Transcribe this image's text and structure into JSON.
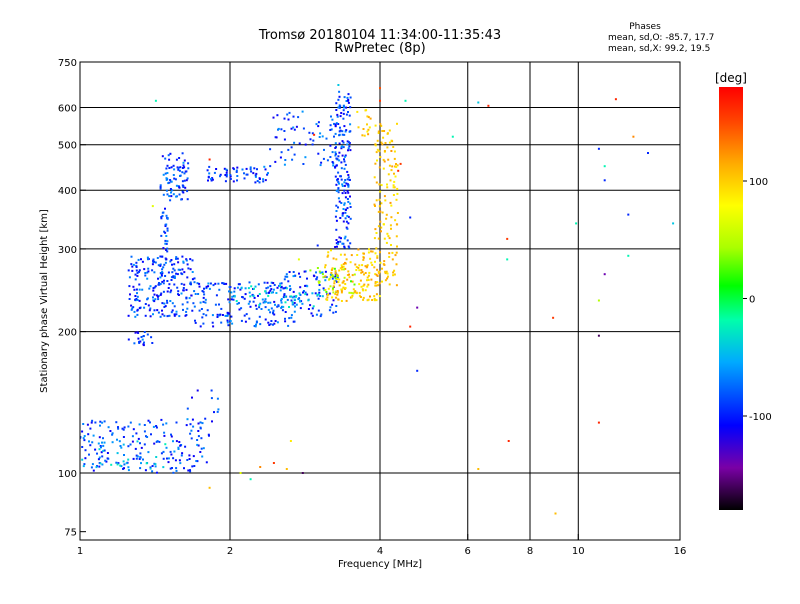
{
  "chart_data": {
    "type": "scatter",
    "title": "Tromsø 20180104 11:34:00-11:35:43",
    "subtitle": "RwPretec (8p)",
    "xlabel": "Frequency [MHz]",
    "ylabel": "Stationary phase Virtual Height [km]",
    "xscale": "log",
    "yscale": "log",
    "xlim": [
      1,
      16
    ],
    "ylim": [
      72,
      750
    ],
    "x_ticks": [
      {
        "value": 1,
        "label": "1"
      },
      {
        "value": 2,
        "label": "2"
      },
      {
        "value": 4,
        "label": "4"
      },
      {
        "value": 6,
        "label": "6"
      },
      {
        "value": 8,
        "label": "8"
      },
      {
        "value": 10,
        "label": "10"
      },
      {
        "value": 16,
        "label": "16"
      }
    ],
    "x_grid": [
      2,
      4,
      6,
      8,
      10
    ],
    "y_ticks": [
      {
        "value": 75,
        "label": "75"
      },
      {
        "value": 100,
        "label": "100"
      },
      {
        "value": 200,
        "label": "200"
      },
      {
        "value": 300,
        "label": "300"
      },
      {
        "value": 400,
        "label": "400"
      },
      {
        "value": 500,
        "label": "500"
      },
      {
        "value": 600,
        "label": "600"
      },
      {
        "value": 750,
        "label": "750"
      }
    ],
    "y_grid": [
      100,
      200,
      300,
      400,
      500,
      600
    ],
    "grid": true,
    "stats": {
      "heading": "Phases",
      "line1": "mean, sd,O: -85.7, 17.7",
      "line2": "mean, sd,X:  99.2, 19.5"
    },
    "colorbar": {
      "label": "[deg]",
      "range": [
        -180,
        180
      ],
      "ticks": [
        {
          "value": 100,
          "label": "100"
        },
        {
          "value": 0,
          "label": "0"
        },
        {
          "value": -100,
          "label": "-100"
        }
      ],
      "colors": [
        "#000000",
        "#7a00a6",
        "#0000ff",
        "#00aaff",
        "#00ffaa",
        "#00ff00",
        "#aaff00",
        "#ffff00",
        "#ffaa00",
        "#ff4400",
        "#ff0000"
      ]
    },
    "series": [
      {
        "phase_deg": -95,
        "clusters": [
          {
            "x": [
              1.45,
              1.65
            ],
            "y": [
              380,
              480
            ],
            "n": 80
          },
          {
            "x": [
              1.45,
              1.5
            ],
            "y": [
              250,
              380
            ],
            "n": 40
          },
          {
            "x": [
              1.8,
              2.4
            ],
            "y": [
              415,
              450
            ],
            "n": 60
          },
          {
            "x": [
              2.4,
              3.3
            ],
            "y": [
              450,
              590
            ],
            "n": 70
          },
          {
            "x": [
              3.25,
              3.5
            ],
            "y": [
              300,
              650
            ],
            "n": 180
          },
          {
            "x": [
              1.25,
              1.7
            ],
            "y": [
              215,
              290
            ],
            "n": 220
          },
          {
            "x": [
              1.7,
              2.7
            ],
            "y": [
              205,
              255
            ],
            "n": 190
          },
          {
            "x": [
              2.5,
              3.3
            ],
            "y": [
              215,
              270
            ],
            "n": 90
          },
          {
            "x": [
              1.25,
              1.4
            ],
            "y": [
              187,
              200
            ],
            "n": 20
          },
          {
            "x": [
              1.0,
              1.8
            ],
            "y": [
              100,
              130
            ],
            "n": 190
          },
          {
            "x": [
              1.6,
              1.9
            ],
            "y": [
              120,
              150
            ],
            "n": 20
          }
        ]
      },
      {
        "phase_deg": -60,
        "clusters": [
          {
            "x": [
              2.0,
              3.1
            ],
            "y": [
              225,
              250
            ],
            "n": 50
          },
          {
            "x": [
              1.0,
              1.5
            ],
            "y": [
              102,
              118
            ],
            "n": 25
          }
        ]
      },
      {
        "phase_deg": 95,
        "clusters": [
          {
            "x": [
              3.1,
              4.0
            ],
            "y": [
              232,
              300
            ],
            "n": 160
          },
          {
            "x": [
              3.9,
              4.35
            ],
            "y": [
              250,
              560
            ],
            "n": 140
          },
          {
            "x": [
              3.6,
              3.85
            ],
            "y": [
              520,
              600
            ],
            "n": 15
          }
        ]
      },
      {
        "phase_deg": 30,
        "clusters": [
          {
            "x": [
              3.0,
              3.6
            ],
            "y": [
              240,
              275
            ],
            "n": 25
          }
        ]
      }
    ],
    "scattered_points": [
      {
        "x": 1.42,
        "y": 620,
        "phase": -40
      },
      {
        "x": 1.82,
        "y": 465,
        "phase": 160
      },
      {
        "x": 2.95,
        "y": 525,
        "phase": 160
      },
      {
        "x": 3.3,
        "y": 670,
        "phase": -60
      },
      {
        "x": 4.0,
        "y": 660,
        "phase": 140
      },
      {
        "x": 4.0,
        "y": 620,
        "phase": 150
      },
      {
        "x": 4.5,
        "y": 620,
        "phase": -40
      },
      {
        "x": 4.4,
        "y": 455,
        "phase": 150
      },
      {
        "x": 4.35,
        "y": 440,
        "phase": 160
      },
      {
        "x": 4.6,
        "y": 350,
        "phase": -100
      },
      {
        "x": 5.6,
        "y": 520,
        "phase": -40
      },
      {
        "x": 6.3,
        "y": 615,
        "phase": -60
      },
      {
        "x": 6.6,
        "y": 605,
        "phase": 160
      },
      {
        "x": 7.2,
        "y": 315,
        "phase": 150
      },
      {
        "x": 7.2,
        "y": 285,
        "phase": -40
      },
      {
        "x": 4.75,
        "y": 225,
        "phase": -140
      },
      {
        "x": 4.6,
        "y": 205,
        "phase": 160
      },
      {
        "x": 4.75,
        "y": 165,
        "phase": -100
      },
      {
        "x": 7.25,
        "y": 117,
        "phase": 160
      },
      {
        "x": 6.3,
        "y": 102,
        "phase": 100
      },
      {
        "x": 8.9,
        "y": 214,
        "phase": 150
      },
      {
        "x": 9.0,
        "y": 82,
        "phase": 100
      },
      {
        "x": 9.9,
        "y": 340,
        "phase": -40
      },
      {
        "x": 11.0,
        "y": 490,
        "phase": -100
      },
      {
        "x": 11.3,
        "y": 450,
        "phase": -40
      },
      {
        "x": 11.3,
        "y": 420,
        "phase": -100
      },
      {
        "x": 11.3,
        "y": 265,
        "phase": -140
      },
      {
        "x": 11.0,
        "y": 233,
        "phase": 40
      },
      {
        "x": 11.0,
        "y": 196,
        "phase": -160
      },
      {
        "x": 11.0,
        "y": 128,
        "phase": 160
      },
      {
        "x": 11.9,
        "y": 625,
        "phase": 160
      },
      {
        "x": 12.9,
        "y": 520,
        "phase": 120
      },
      {
        "x": 12.6,
        "y": 355,
        "phase": -100
      },
      {
        "x": 12.6,
        "y": 290,
        "phase": -40
      },
      {
        "x": 13.8,
        "y": 480,
        "phase": -100
      },
      {
        "x": 15.5,
        "y": 340,
        "phase": -60
      },
      {
        "x": 2.3,
        "y": 103,
        "phase": 120
      },
      {
        "x": 2.45,
        "y": 105,
        "phase": 150
      },
      {
        "x": 2.6,
        "y": 102,
        "phase": 100
      },
      {
        "x": 2.8,
        "y": 100,
        "phase": -160
      },
      {
        "x": 2.2,
        "y": 97,
        "phase": -40
      },
      {
        "x": 2.1,
        "y": 100,
        "phase": 60
      },
      {
        "x": 1.82,
        "y": 93,
        "phase": 100
      },
      {
        "x": 2.65,
        "y": 117,
        "phase": 80
      },
      {
        "x": 1.4,
        "y": 370,
        "phase": 60
      },
      {
        "x": 2.9,
        "y": 270,
        "phase": 30
      },
      {
        "x": 2.75,
        "y": 285,
        "phase": 60
      },
      {
        "x": 3.0,
        "y": 305,
        "phase": -100
      }
    ]
  }
}
